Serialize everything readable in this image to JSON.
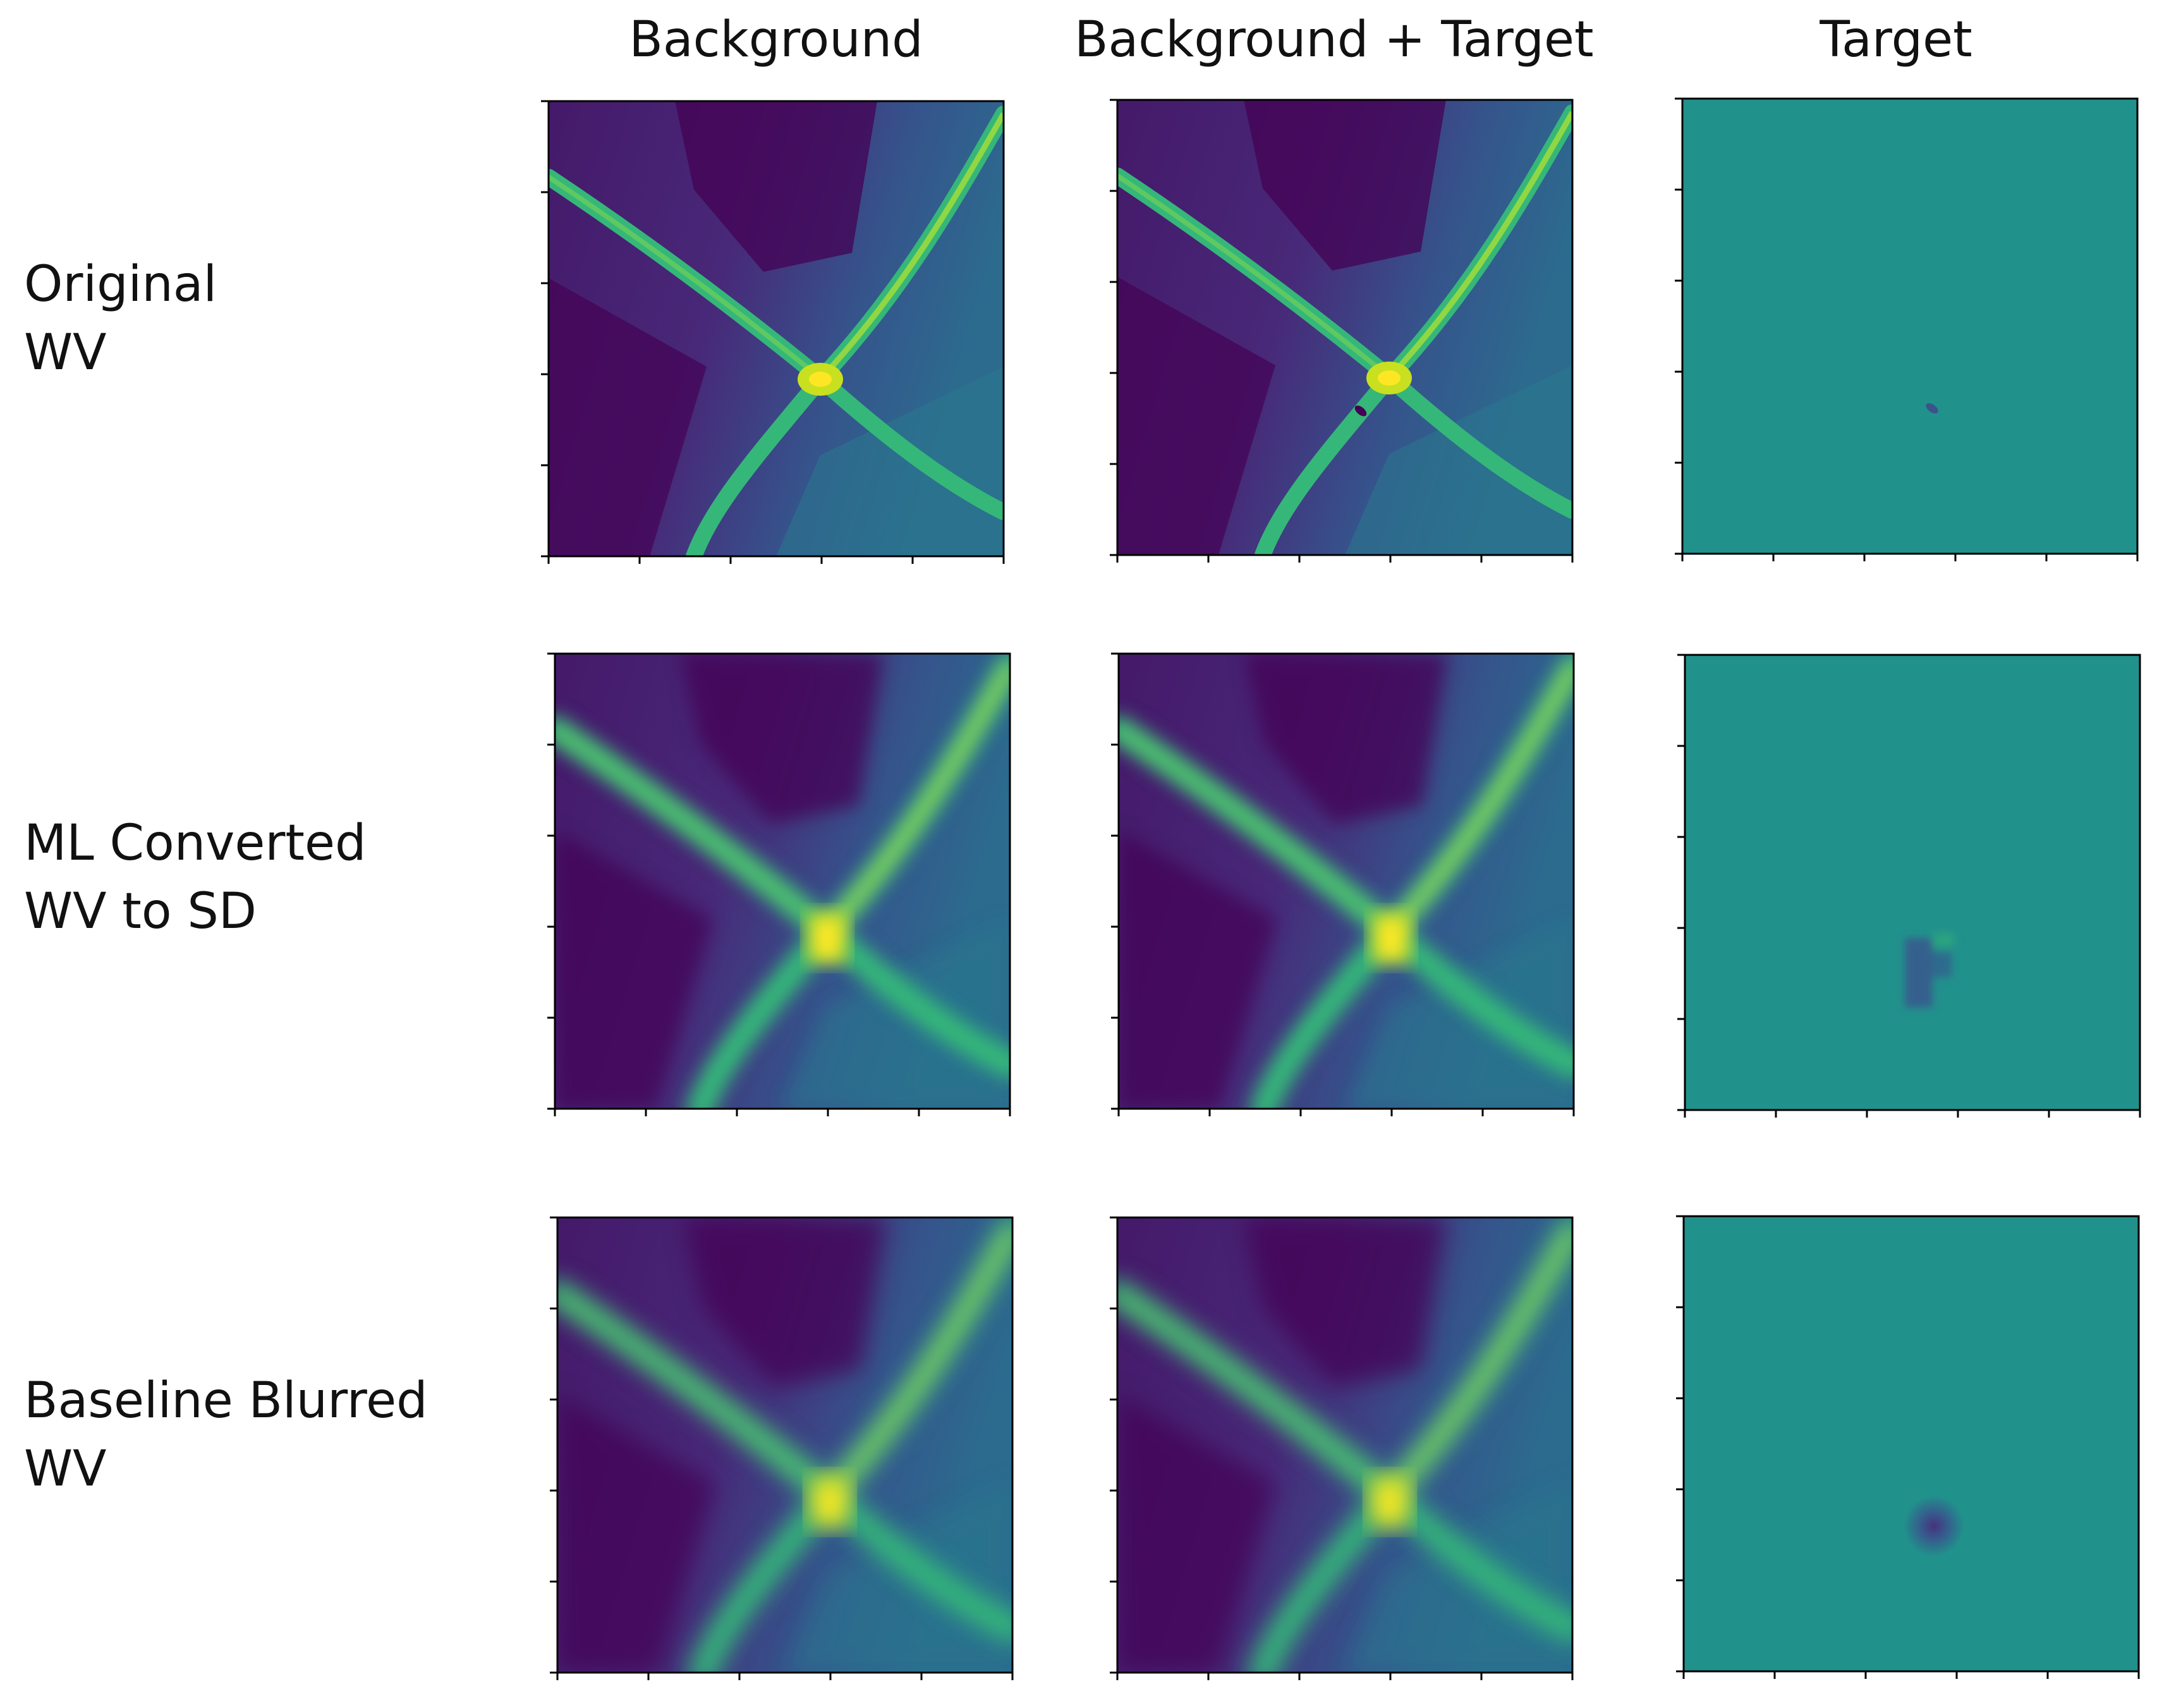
{
  "columns": [
    "Background",
    "Background + Target",
    "Target"
  ],
  "rows": [
    {
      "label_line1": "Original",
      "label_line2": "WV"
    },
    {
      "label_line1": "ML Converted",
      "label_line2": "WV to SD"
    },
    {
      "label_line1": "Baseline Blurred",
      "label_line2": "WV"
    }
  ],
  "colormap": {
    "name": "viridis",
    "low": "#440154",
    "mid_low": "#3b528b",
    "mid": "#21918c",
    "mid_high": "#5ec962",
    "high": "#fde725"
  },
  "panels": [
    {
      "row": 0,
      "col": 0,
      "kind": "background",
      "blur": "none"
    },
    {
      "row": 0,
      "col": 1,
      "kind": "background+target",
      "blur": "none"
    },
    {
      "row": 0,
      "col": 2,
      "kind": "target",
      "blur": "none"
    },
    {
      "row": 1,
      "col": 0,
      "kind": "background",
      "blur": "ml"
    },
    {
      "row": 1,
      "col": 1,
      "kind": "background+target",
      "blur": "ml"
    },
    {
      "row": 1,
      "col": 2,
      "kind": "target",
      "blur": "ml"
    },
    {
      "row": 2,
      "col": 0,
      "kind": "background",
      "blur": "gaussian"
    },
    {
      "row": 2,
      "col": 1,
      "kind": "background+target",
      "blur": "gaussian"
    },
    {
      "row": 2,
      "col": 2,
      "kind": "target",
      "blur": "gaussian"
    }
  ]
}
